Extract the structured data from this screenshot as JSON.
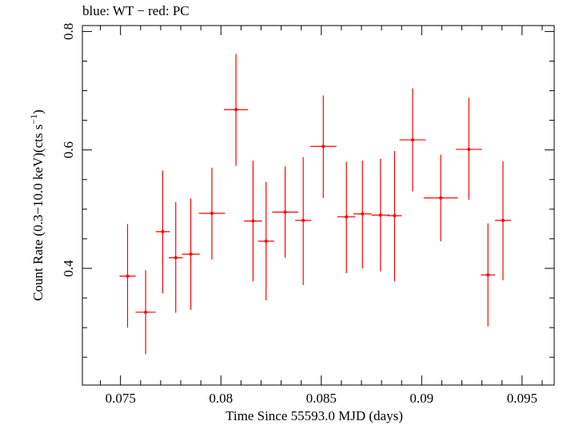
{
  "chart_data": {
    "type": "scatter",
    "title": "blue: WT − red: PC",
    "xlabel": "Time Since 55593.0 MJD (days)",
    "ylabel_main": "Count Rate (0.3−10.0 keV)(cts s",
    "ylabel_sup": "−1",
    "ylabel_tail": ")",
    "xlim": [
      0.0731,
      0.0966
    ],
    "ylim": [
      0.203,
      0.81
    ],
    "x_ticks_major": [
      0.075,
      0.08,
      0.085,
      0.09,
      0.095
    ],
    "x_tick_labels": [
      "0.075",
      "0.08",
      "0.085",
      "0.09",
      "0.095"
    ],
    "y_ticks_major": [
      0.4,
      0.6,
      0.8
    ],
    "y_tick_labels": [
      "0.4",
      "0.6",
      "0.8"
    ],
    "grid": false,
    "series": [
      {
        "color": "#ff0000",
        "points": [
          {
            "x": 0.07535,
            "y": 0.387,
            "xerr": 0.0004,
            "ylo": 0.3,
            "yhi": 0.475
          },
          {
            "x": 0.07625,
            "y": 0.326,
            "xerr": 0.0005,
            "ylo": 0.255,
            "yhi": 0.397
          },
          {
            "x": 0.0771,
            "y": 0.462,
            "xerr": 0.00035,
            "ylo": 0.358,
            "yhi": 0.565
          },
          {
            "x": 0.07775,
            "y": 0.418,
            "xerr": 0.00035,
            "ylo": 0.325,
            "yhi": 0.512
          },
          {
            "x": 0.0785,
            "y": 0.424,
            "xerr": 0.00045,
            "ylo": 0.33,
            "yhi": 0.518
          },
          {
            "x": 0.07955,
            "y": 0.493,
            "xerr": 0.00065,
            "ylo": 0.415,
            "yhi": 0.57
          },
          {
            "x": 0.08075,
            "y": 0.668,
            "xerr": 0.0006,
            "ylo": 0.573,
            "yhi": 0.762
          },
          {
            "x": 0.0816,
            "y": 0.48,
            "xerr": 0.00045,
            "ylo": 0.378,
            "yhi": 0.582
          },
          {
            "x": 0.08225,
            "y": 0.446,
            "xerr": 0.0004,
            "ylo": 0.346,
            "yhi": 0.546
          },
          {
            "x": 0.0832,
            "y": 0.495,
            "xerr": 0.00065,
            "ylo": 0.418,
            "yhi": 0.572
          },
          {
            "x": 0.0841,
            "y": 0.481,
            "xerr": 0.0004,
            "ylo": 0.372,
            "yhi": 0.588
          },
          {
            "x": 0.0851,
            "y": 0.606,
            "xerr": 0.00065,
            "ylo": 0.519,
            "yhi": 0.692
          },
          {
            "x": 0.08625,
            "y": 0.487,
            "xerr": 0.00045,
            "ylo": 0.392,
            "yhi": 0.58
          },
          {
            "x": 0.08705,
            "y": 0.492,
            "xerr": 0.00045,
            "ylo": 0.4,
            "yhi": 0.582
          },
          {
            "x": 0.08795,
            "y": 0.49,
            "xerr": 0.00045,
            "ylo": 0.395,
            "yhi": 0.585
          },
          {
            "x": 0.08865,
            "y": 0.489,
            "xerr": 0.00035,
            "ylo": 0.378,
            "yhi": 0.598
          },
          {
            "x": 0.08955,
            "y": 0.617,
            "xerr": 0.00065,
            "ylo": 0.53,
            "yhi": 0.704
          },
          {
            "x": 0.09095,
            "y": 0.519,
            "xerr": 0.00085,
            "ylo": 0.446,
            "yhi": 0.592
          },
          {
            "x": 0.09235,
            "y": 0.601,
            "xerr": 0.00065,
            "ylo": 0.516,
            "yhi": 0.688
          },
          {
            "x": 0.0933,
            "y": 0.389,
            "xerr": 0.00035,
            "ylo": 0.302,
            "yhi": 0.476
          },
          {
            "x": 0.09405,
            "y": 0.481,
            "xerr": 0.0004,
            "ylo": 0.38,
            "yhi": 0.581
          }
        ]
      }
    ]
  }
}
